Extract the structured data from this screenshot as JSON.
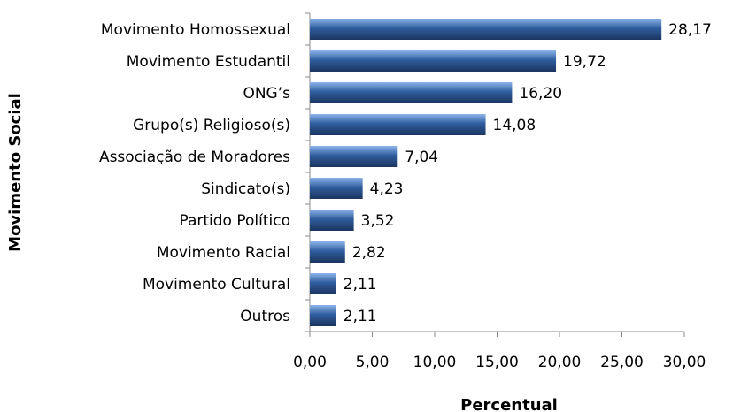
{
  "chart_data": {
    "type": "bar",
    "orientation": "horizontal",
    "x_label": "Percentual",
    "y_label": "Movimento Social",
    "categories": [
      "Movimento Homossexual",
      "Movimento Estudantil",
      "ONG’s",
      "Grupo(s) Religioso(s)",
      "Associação de Moradores",
      "Sindicato(s)",
      "Partido Político",
      "Movimento Racial",
      "Movimento Cultural",
      "Outros"
    ],
    "values": [
      28.17,
      19.72,
      16.2,
      14.08,
      7.04,
      4.23,
      3.52,
      2.82,
      2.11,
      2.11
    ],
    "value_labels": [
      "28,17",
      "19,72",
      "16,20",
      "14,08",
      "7,04",
      "4,23",
      "3,52",
      "2,82",
      "2,11",
      "2,11"
    ],
    "color": "#2f5d9e",
    "xlim": [
      0,
      30
    ],
    "xticks": [
      {
        "value": 0,
        "label": "0,00"
      },
      {
        "value": 5,
        "label": "5,00"
      },
      {
        "value": 10,
        "label": "10,00"
      },
      {
        "value": 15,
        "label": "15,00"
      },
      {
        "value": 20,
        "label": "20,00"
      },
      {
        "value": 25,
        "label": "25,00"
      },
      {
        "value": 30,
        "label": "30,00"
      }
    ],
    "grid": false
  }
}
